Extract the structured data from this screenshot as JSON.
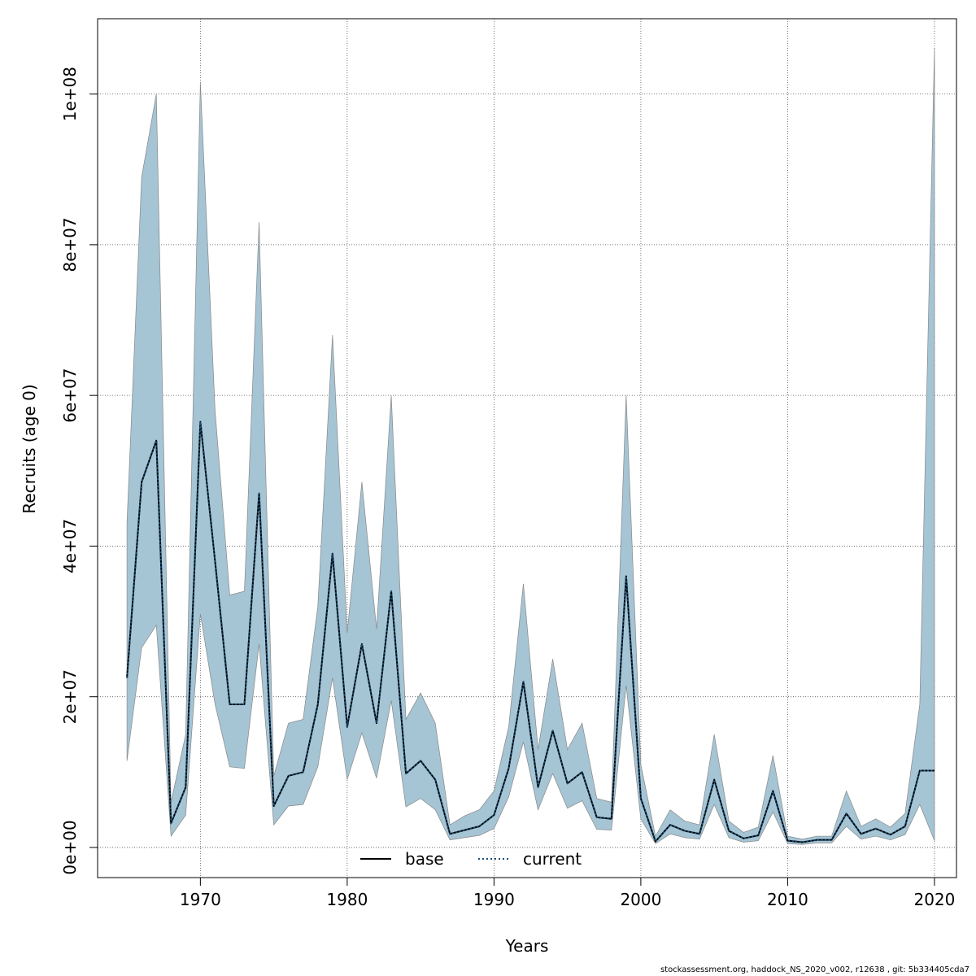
{
  "chart_data": {
    "type": "line",
    "xlabel": "Years",
    "ylabel": "Recruits (age 0)",
    "xlim": [
      1963,
      2021.5
    ],
    "ylim": [
      -4000000,
      110000000
    ],
    "x_ticks": [
      1970,
      1980,
      1990,
      2000,
      2010,
      2020
    ],
    "x_tick_labels": [
      "1970",
      "1980",
      "1990",
      "2000",
      "2010",
      "2020"
    ],
    "y_ticks": [
      0,
      20000000,
      40000000,
      60000000,
      80000000,
      100000000
    ],
    "y_tick_labels": [
      "0e+00",
      "2e+07",
      "4e+07",
      "6e+07",
      "8e+07",
      "1e+08"
    ],
    "grid": true,
    "band_color": "#a5c4d4",
    "band_edge_color": "#888888",
    "x": [
      1965,
      1966,
      1967,
      1968,
      1969,
      1970,
      1971,
      1972,
      1973,
      1974,
      1975,
      1976,
      1977,
      1978,
      1979,
      1980,
      1981,
      1982,
      1983,
      1984,
      1985,
      1986,
      1987,
      1988,
      1989,
      1990,
      1991,
      1992,
      1993,
      1994,
      1995,
      1996,
      1997,
      1998,
      1999,
      2000,
      2001,
      2002,
      2003,
      2004,
      2005,
      2006,
      2007,
      2008,
      2009,
      2010,
      2011,
      2012,
      2013,
      2014,
      2015,
      2016,
      2017,
      2018,
      2019,
      2020
    ],
    "series": [
      {
        "name": "base",
        "line_style": "solid",
        "color": "#000000",
        "values": [
          22500000,
          48500000,
          54000000,
          3200000,
          8000000,
          56500000,
          38000000,
          19000000,
          19000000,
          47000000,
          5500000,
          9500000,
          10000000,
          19000000,
          39000000,
          16000000,
          27000000,
          16500000,
          34000000,
          9800000,
          11500000,
          9000000,
          1800000,
          2300000,
          2800000,
          4300000,
          10500000,
          22000000,
          8000000,
          15500000,
          8500000,
          10000000,
          4000000,
          3800000,
          36000000,
          6500000,
          800000,
          3000000,
          2200000,
          1800000,
          9000000,
          2200000,
          1200000,
          1600000,
          7500000,
          900000,
          700000,
          1000000,
          1000000,
          4500000,
          1800000,
          2500000,
          1700000,
          2800000,
          10200000,
          10200000
        ]
      },
      {
        "name": "current",
        "line_style": "dotted",
        "color": "#1a4f7a",
        "values": [
          22500000,
          48500000,
          54000000,
          3200000,
          8000000,
          56500000,
          38000000,
          19000000,
          19000000,
          47000000,
          5500000,
          9500000,
          10000000,
          19000000,
          39000000,
          16000000,
          27000000,
          16500000,
          34000000,
          9800000,
          11500000,
          9000000,
          1800000,
          2300000,
          2800000,
          4300000,
          10500000,
          22000000,
          8000000,
          15500000,
          8500000,
          10000000,
          4000000,
          3800000,
          36000000,
          6500000,
          800000,
          3000000,
          2200000,
          1800000,
          9000000,
          2200000,
          1200000,
          1600000,
          7500000,
          900000,
          700000,
          1000000,
          1000000,
          4500000,
          1800000,
          2500000,
          1700000,
          2800000,
          10200000,
          10200000
        ]
      }
    ],
    "upper": [
      43000000,
      89000000,
      100000000,
      6000000,
      15000000,
      101500000,
      58000000,
      33500000,
      34000000,
      83000000,
      9500000,
      16500000,
      17000000,
      32000000,
      68000000,
      28500000,
      48500000,
      29000000,
      60000000,
      17000000,
      20500000,
      16500000,
      3000000,
      4200000,
      5000000,
      7500000,
      16000000,
      35000000,
      13000000,
      25000000,
      13000000,
      16500000,
      6500000,
      6000000,
      60000000,
      11000000,
      1500000,
      5000000,
      3500000,
      3000000,
      15000000,
      3500000,
      2000000,
      2700000,
      12200000,
      1500000,
      1100000,
      1500000,
      1500000,
      7500000,
      2800000,
      3800000,
      2700000,
      4500000,
      19000000,
      106000000
    ],
    "lower": [
      11500000,
      26500000,
      29500000,
      1500000,
      4300000,
      31000000,
      19000000,
      10700000,
      10500000,
      27000000,
      3000000,
      5500000,
      5700000,
      10700000,
      22500000,
      9000000,
      15200000,
      9200000,
      19500000,
      5400000,
      6500000,
      5000000,
      1000000,
      1300000,
      1600000,
      2500000,
      6700000,
      14000000,
      5000000,
      9800000,
      5200000,
      6200000,
      2400000,
      2300000,
      21500000,
      3800000,
      500000,
      1800000,
      1300000,
      1100000,
      5700000,
      1300000,
      700000,
      900000,
      4700000,
      500000,
      400000,
      600000,
      600000,
      2800000,
      1100000,
      1500000,
      1000000,
      1700000,
      5700000,
      900000
    ],
    "legend": {
      "position": "bottom-center",
      "entries": [
        {
          "label": "base",
          "line_style": "solid",
          "color": "#000000"
        },
        {
          "label": "current",
          "line_style": "dotted",
          "color": "#1a4f7a"
        }
      ]
    }
  },
  "footer_note": "stockassessment.org, haddock_NS_2020_v002, r12638 , git: 5b334405cda7"
}
